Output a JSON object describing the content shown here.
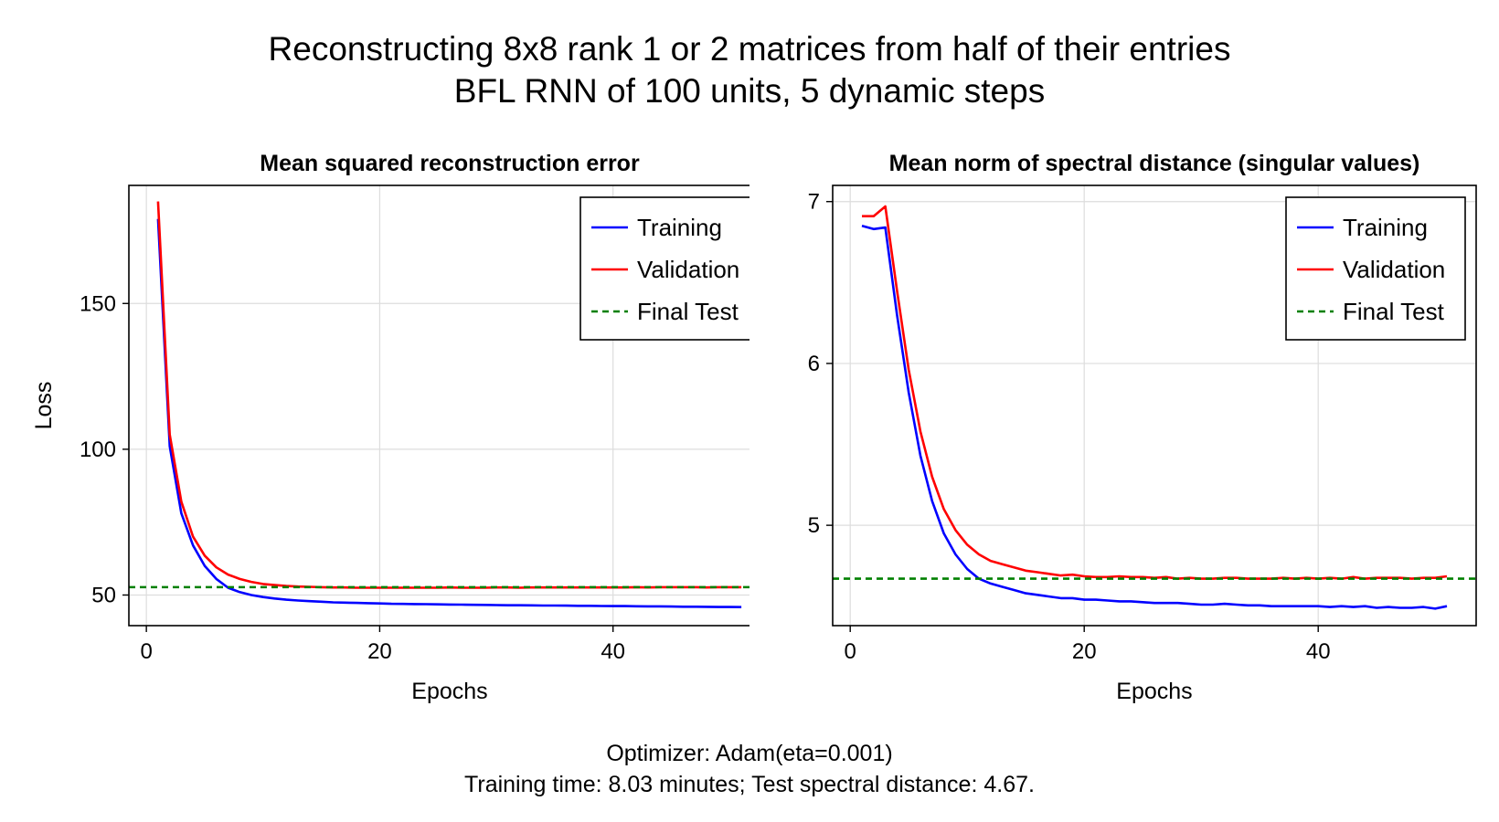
{
  "figure": {
    "title_line1": "Reconstructing 8x8 rank 1 or 2 matrices from half of their entries",
    "title_line2": "BFL RNN of 100 units, 5 dynamic steps",
    "footer_line1": "Optimizer: Adam(eta=0.001)",
    "footer_line2": "Training time: 8.03 minutes; Test spectral distance: 4.67."
  },
  "colors": {
    "training": "#0000ff",
    "validation": "#ff0000",
    "final_test": "#008000",
    "grid": "#dddddd"
  },
  "chart_data": [
    {
      "type": "line",
      "title": "Mean squared reconstruction error",
      "xlabel": "Epochs",
      "ylabel": "Loss",
      "xlim": [
        -1.5,
        53.5
      ],
      "ylim": [
        39.5,
        190.5
      ],
      "xticks": [
        0,
        20,
        40
      ],
      "yticks": [
        50,
        100,
        150
      ],
      "grid": true,
      "legend_position": "top-right",
      "series": [
        {
          "name": "Training",
          "style": "solid",
          "color": "#0000ff",
          "x": [
            1,
            2,
            3,
            4,
            5,
            6,
            7,
            8,
            9,
            10,
            11,
            12,
            13,
            14,
            15,
            16,
            17,
            18,
            19,
            20,
            21,
            22,
            23,
            24,
            25,
            26,
            27,
            28,
            29,
            30,
            31,
            32,
            33,
            34,
            35,
            36,
            37,
            38,
            39,
            40,
            41,
            42,
            43,
            44,
            45,
            46,
            47,
            48,
            49,
            50,
            51
          ],
          "y": [
            179,
            101,
            78,
            67,
            60,
            55.5,
            52.5,
            51,
            50,
            49.3,
            48.8,
            48.4,
            48.1,
            47.9,
            47.7,
            47.5,
            47.4,
            47.3,
            47.2,
            47.1,
            47.0,
            46.95,
            46.9,
            46.85,
            46.8,
            46.75,
            46.7,
            46.65,
            46.6,
            46.55,
            46.5,
            46.5,
            46.45,
            46.4,
            46.4,
            46.35,
            46.3,
            46.3,
            46.25,
            46.2,
            46.2,
            46.15,
            46.1,
            46.1,
            46.05,
            46.0,
            46.0,
            45.95,
            45.9,
            45.9,
            45.85
          ]
        },
        {
          "name": "Validation",
          "style": "solid",
          "color": "#ff0000",
          "x": [
            1,
            2,
            3,
            4,
            5,
            6,
            7,
            8,
            9,
            10,
            11,
            12,
            13,
            14,
            15,
            16,
            17,
            18,
            19,
            20,
            21,
            22,
            23,
            24,
            25,
            26,
            27,
            28,
            29,
            30,
            31,
            32,
            33,
            34,
            35,
            36,
            37,
            38,
            39,
            40,
            41,
            42,
            43,
            44,
            45,
            46,
            47,
            48,
            49,
            50,
            51
          ],
          "y": [
            185,
            105,
            82,
            70,
            63.5,
            59.5,
            57,
            55.5,
            54.5,
            53.8,
            53.4,
            53.1,
            52.9,
            52.8,
            52.7,
            52.6,
            52.6,
            52.5,
            52.5,
            52.5,
            52.5,
            52.5,
            52.5,
            52.5,
            52.5,
            52.6,
            52.5,
            52.5,
            52.5,
            52.6,
            52.6,
            52.5,
            52.6,
            52.6,
            52.6,
            52.6,
            52.6,
            52.6,
            52.6,
            52.6,
            52.6,
            52.7,
            52.6,
            52.7,
            52.7,
            52.7,
            52.7,
            52.6,
            52.7,
            52.7,
            52.7
          ]
        },
        {
          "name": "Final Test",
          "style": "dashed",
          "color": "#008000",
          "hline": 52.7
        }
      ]
    },
    {
      "type": "line",
      "title": "Mean norm of spectral distance (singular values)",
      "xlabel": "Epochs",
      "ylabel": "",
      "xlim": [
        -1.5,
        53.5
      ],
      "ylim": [
        4.38,
        7.1
      ],
      "xticks": [
        0,
        20,
        40
      ],
      "yticks": [
        5,
        6,
        7
      ],
      "grid": true,
      "legend_position": "top-right",
      "series": [
        {
          "name": "Training",
          "style": "solid",
          "color": "#0000ff",
          "x": [
            1,
            2,
            3,
            4,
            5,
            6,
            7,
            8,
            9,
            10,
            11,
            12,
            13,
            14,
            15,
            16,
            17,
            18,
            19,
            20,
            21,
            22,
            23,
            24,
            25,
            26,
            27,
            28,
            29,
            30,
            31,
            32,
            33,
            34,
            35,
            36,
            37,
            38,
            39,
            40,
            41,
            42,
            43,
            44,
            45,
            46,
            47,
            48,
            49,
            50,
            51
          ],
          "y": [
            6.85,
            6.83,
            6.84,
            6.3,
            5.82,
            5.43,
            5.15,
            4.95,
            4.82,
            4.73,
            4.67,
            4.64,
            4.62,
            4.6,
            4.58,
            4.57,
            4.56,
            4.55,
            4.55,
            4.54,
            4.54,
            4.535,
            4.53,
            4.53,
            4.525,
            4.52,
            4.52,
            4.52,
            4.515,
            4.51,
            4.51,
            4.515,
            4.51,
            4.505,
            4.505,
            4.5,
            4.5,
            4.5,
            4.5,
            4.5,
            4.495,
            4.5,
            4.495,
            4.5,
            4.49,
            4.495,
            4.49,
            4.49,
            4.495,
            4.485,
            4.5
          ]
        },
        {
          "name": "Validation",
          "style": "solid",
          "color": "#ff0000",
          "x": [
            1,
            2,
            3,
            4,
            5,
            6,
            7,
            8,
            9,
            10,
            11,
            12,
            13,
            14,
            15,
            16,
            17,
            18,
            19,
            20,
            21,
            22,
            23,
            24,
            25,
            26,
            27,
            28,
            29,
            30,
            31,
            32,
            33,
            34,
            35,
            36,
            37,
            38,
            39,
            40,
            41,
            42,
            43,
            44,
            45,
            46,
            47,
            48,
            49,
            50,
            51
          ],
          "y": [
            6.91,
            6.91,
            6.97,
            6.45,
            5.96,
            5.58,
            5.3,
            5.1,
            4.97,
            4.88,
            4.82,
            4.78,
            4.76,
            4.74,
            4.72,
            4.71,
            4.7,
            4.69,
            4.695,
            4.685,
            4.68,
            4.68,
            4.685,
            4.68,
            4.68,
            4.675,
            4.68,
            4.67,
            4.675,
            4.67,
            4.67,
            4.675,
            4.675,
            4.67,
            4.67,
            4.67,
            4.675,
            4.67,
            4.675,
            4.67,
            4.675,
            4.67,
            4.68,
            4.67,
            4.675,
            4.675,
            4.675,
            4.67,
            4.675,
            4.675,
            4.685
          ]
        },
        {
          "name": "Final Test",
          "style": "dashed",
          "color": "#008000",
          "hline": 4.67
        }
      ]
    }
  ]
}
